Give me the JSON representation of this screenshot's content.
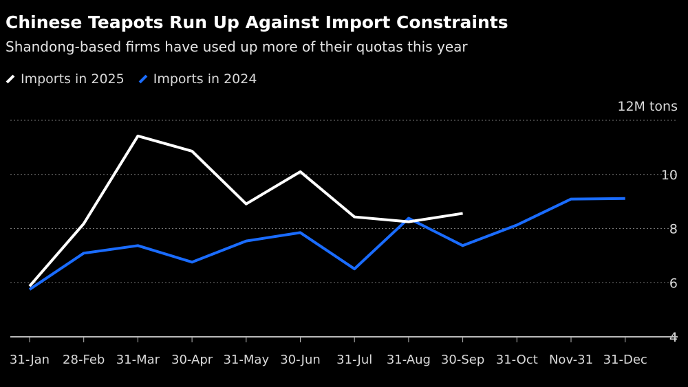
{
  "title": "Chinese Teapots Run Up Against Import Constraints",
  "subtitle": "Shandong-based firms have used up more of their quotas this year",
  "chart_data": {
    "type": "line",
    "categories": [
      "31-Jan",
      "28-Feb",
      "31-Mar",
      "30-Apr",
      "31-May",
      "30-Jun",
      "31-Jul",
      "31-Aug",
      "30-Sep",
      "31-Oct",
      "Nov-31",
      "31-Dec"
    ],
    "series": [
      {
        "name": "Imports in 2025",
        "color": "#ffffff",
        "values": [
          5.87,
          8.18,
          11.42,
          10.86,
          8.91,
          10.1,
          8.43,
          8.25,
          8.56,
          null,
          null,
          null
        ]
      },
      {
        "name": "Imports in 2024",
        "color": "#1a6cff",
        "values": [
          5.75,
          7.09,
          7.37,
          6.76,
          7.54,
          7.85,
          6.51,
          8.38,
          7.37,
          8.13,
          9.09,
          9.11
        ]
      }
    ],
    "y_ticks": [
      4,
      6,
      8,
      10,
      12
    ],
    "y_tick_labels": [
      "4",
      "6",
      "8",
      "10",
      "12M tons"
    ],
    "ylim": [
      4,
      12
    ],
    "grid": true,
    "legend_position": "top-left"
  }
}
